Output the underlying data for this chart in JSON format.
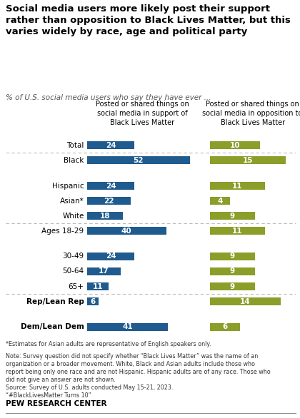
{
  "title": "Social media users more likely post their support\nrather than opposition to Black Lives Matter, but this\nvaries widely by race, age and political party",
  "subtitle": "% of U.S. social media users who say they have ever ...",
  "col1_header_line1": "Posted or shared things on",
  "col1_header_line2": "social media in ",
  "col1_header_bold": "support",
  "col1_header_line3": " of",
  "col1_header_line4": "Black Lives Matter",
  "col2_header_line1": "Posted or shared things on",
  "col2_header_line2": "social media in ",
  "col2_header_bold": "opposition",
  "col2_header_line3": " to",
  "col2_header_line4": "Black Lives Matter",
  "categories": [
    "Total",
    "Black",
    "Hispanic",
    "Asian*",
    "White",
    "Ages 18-29",
    "30-49",
    "50-64",
    "65+",
    "Rep/Lean Rep",
    "Dem/Lean Dem"
  ],
  "support_values": [
    24,
    52,
    24,
    22,
    18,
    40,
    24,
    17,
    11,
    6,
    41
  ],
  "opposition_values": [
    10,
    15,
    11,
    4,
    9,
    11,
    9,
    9,
    9,
    14,
    6
  ],
  "support_color": "#1f5b8e",
  "opposition_color": "#8b9e2a",
  "bold_cats": [
    "Rep/Lean Rep",
    "Dem/Lean Dem"
  ],
  "group_ends": [
    0,
    4,
    8
  ],
  "footnote1": "*Estimates for Asian adults are representative of English speakers only.",
  "footnote2": "Note: Survey question did not specify whether “Black Lives Matter” was the name of an\norganization or a broader movement. White, Black and Asian adults include those who\nreport being only one race and are not Hispanic. Hispanic adults are of any race. Those who\ndid not give an answer are not shown.",
  "footnote3": "Source: Survey of U.S. adults conducted May 15-21, 2023.\n“#BlackLivesMatter Turns 10”",
  "footnote4": "PEW RESEARCH CENTER",
  "background_color": "#ffffff",
  "separator_color": "#bbbbbb"
}
